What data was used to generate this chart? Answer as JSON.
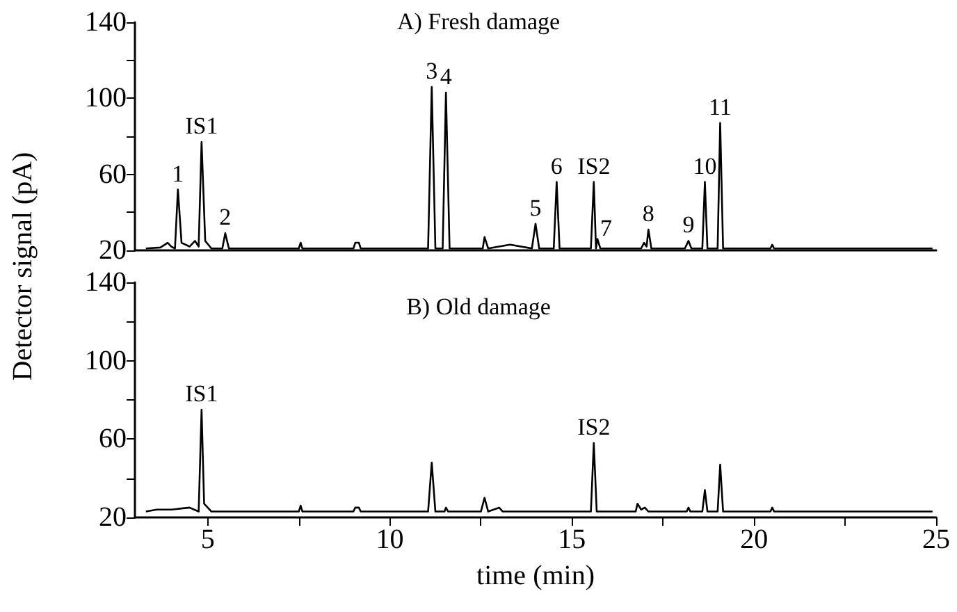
{
  "chart_data": [
    {
      "type": "line",
      "title": "A) Fresh damage",
      "ylabel": "Detector signal (pA)",
      "color": "#000000",
      "tick_labels": "y",
      "xlim": [
        3,
        25
      ],
      "ylim": [
        20,
        140
      ],
      "yticks": [
        20,
        {
          "value": 40,
          "label": null
        },
        60,
        {
          "value": 80,
          "label": null
        },
        100,
        {
          "value": 120,
          "label": null
        },
        140
      ],
      "x": [
        3.3,
        3.7,
        3.9,
        4.0,
        4.1,
        4.18,
        4.28,
        4.5,
        4.65,
        4.75,
        4.83,
        4.93,
        5.1,
        5.4,
        5.48,
        5.58,
        7.5,
        7.55,
        7.6,
        9.0,
        9.05,
        9.15,
        9.2,
        11.05,
        11.15,
        11.25,
        11.45,
        11.54,
        11.64,
        12.55,
        12.6,
        12.7,
        13.0,
        13.3,
        13.9,
        14.0,
        14.1,
        14.5,
        14.58,
        14.66,
        15.52,
        15.6,
        15.66,
        15.7,
        15.78,
        16.9,
        16.98,
        17.05,
        17.1,
        17.18,
        18.1,
        18.2,
        18.28,
        18.58,
        18.65,
        18.72,
        19.0,
        19.07,
        19.15,
        20.45,
        20.5,
        20.55,
        24.9
      ],
      "values": [
        21,
        21.5,
        24,
        22,
        21,
        52,
        24,
        22,
        25,
        22,
        77,
        25,
        21,
        21,
        29,
        21,
        21,
        24,
        21,
        21,
        24,
        24,
        21,
        21,
        106,
        21,
        21,
        103,
        21,
        21,
        27,
        21,
        22,
        23,
        21,
        34,
        21,
        21,
        56,
        21,
        21,
        56,
        21,
        26,
        21,
        21,
        24,
        22,
        31,
        21,
        21,
        25,
        21,
        21,
        56,
        21,
        21,
        87,
        21,
        21,
        23,
        21,
        21
      ],
      "annotations": [
        {
          "text": "1",
          "x": 4.18,
          "y": 52
        },
        {
          "text": "IS1",
          "x": 4.83,
          "y": 77
        },
        {
          "text": "2",
          "x": 5.48,
          "y": 29
        },
        {
          "text": "3",
          "x": 11.15,
          "y": 106
        },
        {
          "text": "4",
          "x": 11.54,
          "y": 103
        },
        {
          "text": "5",
          "x": 14.0,
          "y": 34
        },
        {
          "text": "6",
          "x": 14.58,
          "y": 56
        },
        {
          "text": "IS2",
          "x": 15.6,
          "y": 56
        },
        {
          "text": "7",
          "x": 15.7,
          "y": 26
        },
        {
          "text": "8",
          "x": 17.1,
          "y": 31
        },
        {
          "text": "9",
          "x": 18.2,
          "y": 25
        },
        {
          "text": "10",
          "x": 18.65,
          "y": 56
        },
        {
          "text": "11",
          "x": 19.07,
          "y": 87
        }
      ]
    },
    {
      "type": "line",
      "title": "B) Old damage",
      "xlabel": "time (min)",
      "color": "#000000",
      "xlim": [
        3,
        25
      ],
      "ylim": [
        20,
        140
      ],
      "xticks": [
        5,
        {
          "value": 7.5,
          "label": null
        },
        10,
        {
          "value": 12.5,
          "label": null
        },
        15,
        {
          "value": 17.5,
          "label": null
        },
        20,
        {
          "value": 22.5,
          "label": null
        },
        25
      ],
      "yticks": [
        20,
        {
          "value": 40,
          "label": null
        },
        60,
        {
          "value": 80,
          "label": null
        },
        100,
        {
          "value": 120,
          "label": null
        },
        140
      ],
      "x": [
        3.3,
        3.6,
        4.0,
        4.5,
        4.75,
        4.83,
        4.9,
        5.0,
        5.1,
        7.5,
        7.55,
        7.6,
        9.0,
        9.05,
        9.15,
        9.2,
        11.05,
        11.15,
        11.25,
        11.5,
        11.54,
        11.6,
        12.5,
        12.6,
        12.7,
        13.0,
        13.1,
        15.52,
        15.6,
        15.68,
        16.75,
        16.8,
        16.9,
        17.0,
        17.1,
        18.15,
        18.2,
        18.25,
        18.58,
        18.65,
        18.72,
        19.0,
        19.07,
        19.15,
        20.45,
        20.5,
        20.55,
        24.9
      ],
      "values": [
        23,
        24,
        24,
        25,
        23,
        75,
        27,
        25,
        23,
        23,
        26,
        23,
        23,
        25,
        25,
        23,
        23,
        48,
        23,
        23,
        25,
        23,
        23,
        30,
        23,
        25,
        23,
        23,
        58,
        23,
        23,
        27,
        24,
        25,
        23,
        23,
        25,
        23,
        23,
        34,
        23,
        23,
        47,
        23,
        23,
        25,
        23,
        23
      ],
      "annotations": [
        {
          "text": "IS1",
          "x": 4.83,
          "y": 75
        },
        {
          "text": "IS2",
          "x": 15.6,
          "y": 58
        }
      ]
    }
  ]
}
